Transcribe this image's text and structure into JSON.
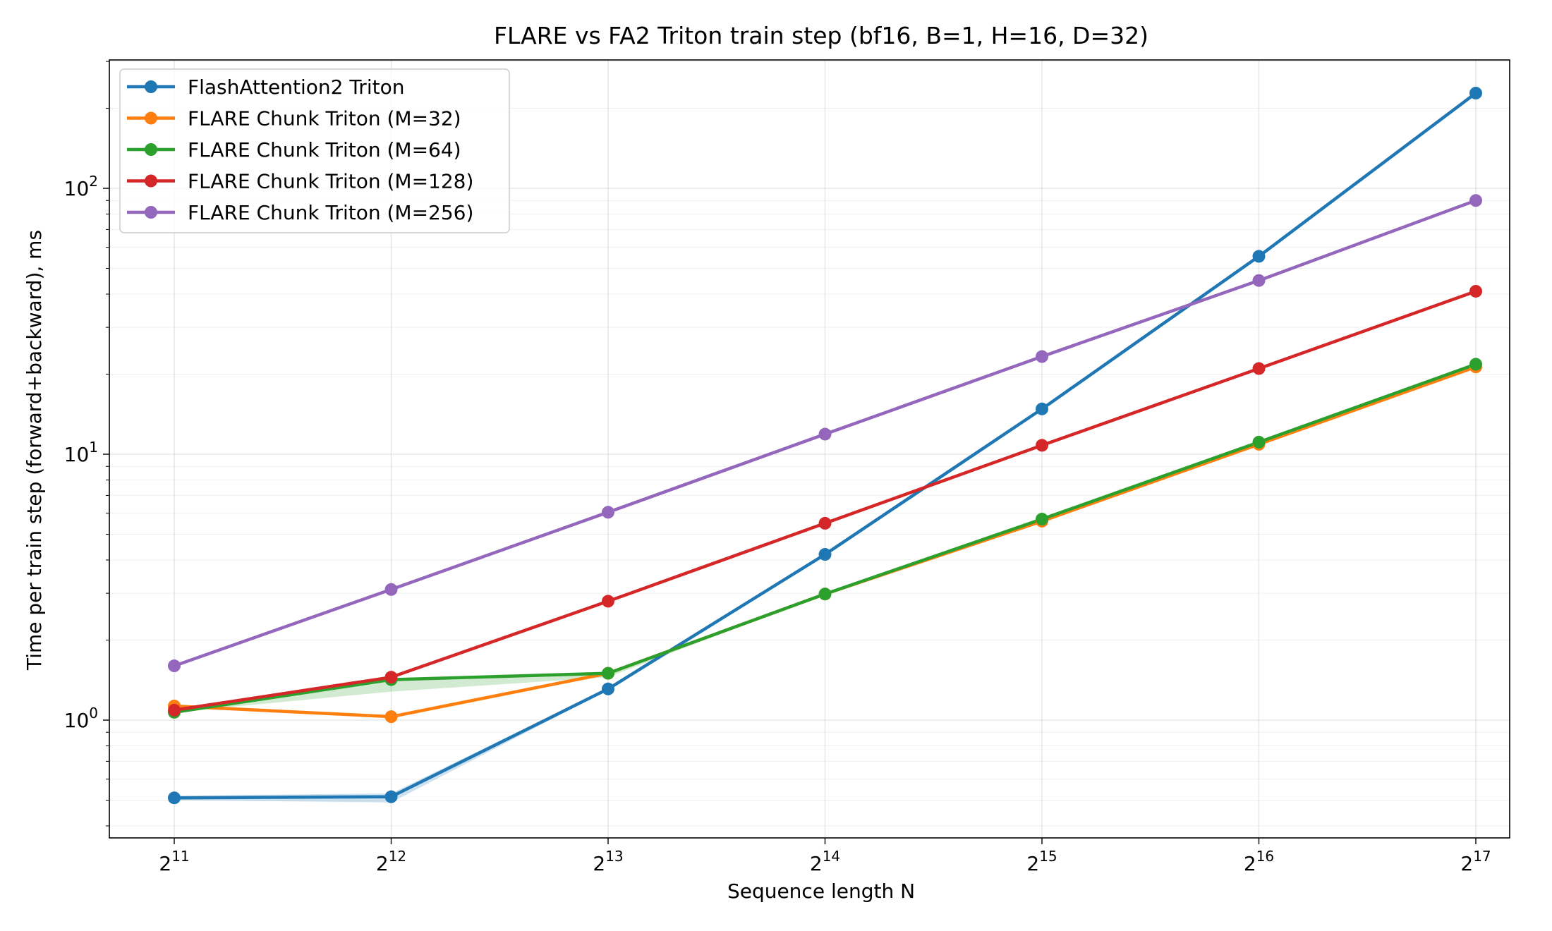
{
  "chart_data": {
    "type": "line",
    "title": "FLARE vs FA2 Triton train step (bf16, B=1, H=16, D=32)",
    "xlabel": "Sequence length N",
    "ylabel": "Time per train step (forward+backward), ms",
    "x_scale": "log2",
    "y_scale": "log10",
    "x": [
      2048,
      4096,
      8192,
      16384,
      32768,
      65536,
      131072
    ],
    "x_tick_labels": [
      {
        "base": "2",
        "exp": "11"
      },
      {
        "base": "2",
        "exp": "12"
      },
      {
        "base": "2",
        "exp": "13"
      },
      {
        "base": "2",
        "exp": "14"
      },
      {
        "base": "2",
        "exp": "15"
      },
      {
        "base": "2",
        "exp": "16"
      },
      {
        "base": "2",
        "exp": "17"
      }
    ],
    "y_tick_labels": [
      {
        "base": "10",
        "exp": "0",
        "value": 1
      },
      {
        "base": "10",
        "exp": "1",
        "value": 10
      },
      {
        "base": "10",
        "exp": "2",
        "value": 100
      }
    ],
    "xlim": [
      1700,
      157000
    ],
    "ylim": [
      0.4,
      300
    ],
    "grid": true,
    "legend_position": "top-left",
    "series": [
      {
        "name": "FlashAttention2 Triton",
        "color": "#1f77b4",
        "values": [
          0.51,
          0.515,
          1.31,
          4.2,
          14.8,
          55.5,
          228
        ],
        "band_low": [
          0.5,
          0.49,
          1.3,
          4.2,
          14.8,
          55.5,
          228
        ],
        "band_high": [
          0.52,
          0.53,
          1.32,
          4.2,
          14.8,
          55.5,
          228
        ]
      },
      {
        "name": "FLARE Chunk Triton (M=32)",
        "color": "#ff7f0e",
        "values": [
          1.13,
          1.03,
          1.5,
          2.98,
          5.6,
          10.9,
          21.3
        ]
      },
      {
        "name": "FLARE Chunk Triton (M=64)",
        "color": "#2ca02c",
        "values": [
          1.07,
          1.42,
          1.5,
          2.98,
          5.7,
          11.1,
          21.8
        ],
        "band_low": [
          1.07,
          1.28,
          1.45,
          2.98,
          5.7,
          11.1,
          21.8
        ],
        "band_high": [
          1.1,
          1.44,
          1.5,
          2.98,
          5.7,
          11.1,
          21.8
        ]
      },
      {
        "name": "FLARE Chunk Triton (M=128)",
        "color": "#d62728",
        "values": [
          1.09,
          1.45,
          2.8,
          5.5,
          10.8,
          21.0,
          41.0
        ]
      },
      {
        "name": "FLARE Chunk Triton (M=256)",
        "color": "#9467bd",
        "values": [
          1.6,
          3.1,
          6.05,
          11.9,
          23.3,
          45.0,
          90.0
        ]
      }
    ]
  }
}
